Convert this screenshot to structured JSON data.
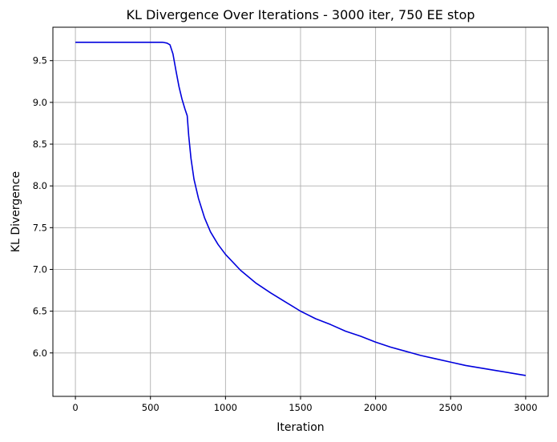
{
  "chart_data": {
    "type": "line",
    "title": "KL Divergence Over Iterations - 3000 iter, 750 EE stop",
    "xlabel": "Iteration",
    "ylabel": "KL Divergence",
    "xlim": [
      -150,
      3150
    ],
    "ylim": [
      5.48,
      9.9
    ],
    "x_ticks": [
      0,
      500,
      1000,
      1500,
      2000,
      2500,
      3000
    ],
    "y_ticks": [
      6.0,
      6.5,
      7.0,
      7.5,
      8.0,
      8.5,
      9.0,
      9.5
    ],
    "grid": true,
    "series": [
      {
        "color": "#0000dd",
        "x": [
          0,
          100,
          200,
          300,
          400,
          500,
          580,
          610,
          630,
          650,
          670,
          690,
          710,
          730,
          745,
          755,
          770,
          790,
          820,
          860,
          900,
          950,
          1000,
          1100,
          1200,
          1300,
          1400,
          1500,
          1600,
          1700,
          1800,
          1900,
          2000,
          2100,
          2200,
          2300,
          2400,
          2500,
          2600,
          2700,
          2800,
          2900,
          3000
        ],
        "y": [
          9.72,
          9.72,
          9.72,
          9.72,
          9.72,
          9.72,
          9.72,
          9.71,
          9.69,
          9.58,
          9.38,
          9.19,
          9.04,
          8.92,
          8.84,
          8.6,
          8.33,
          8.08,
          7.85,
          7.62,
          7.45,
          7.3,
          7.18,
          6.99,
          6.84,
          6.72,
          6.61,
          6.5,
          6.41,
          6.34,
          6.26,
          6.2,
          6.13,
          6.07,
          6.02,
          5.97,
          5.93,
          5.89,
          5.85,
          5.82,
          5.79,
          5.76,
          5.73
        ]
      }
    ]
  }
}
